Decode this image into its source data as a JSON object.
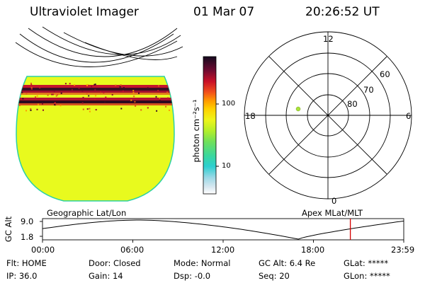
{
  "header": {
    "title": "Ultraviolet Imager",
    "date": "01 Mar 07",
    "time": "20:26:52 UT"
  },
  "image_panel": {
    "label": "Geographic Lat/Lon",
    "fill_color": "#e8fa1e"
  },
  "colorbar": {
    "unit_label": "photon cm⁻²s⁻¹",
    "ticks": [
      "100",
      "10"
    ]
  },
  "polar_plot": {
    "label": "Apex MLat/MLT",
    "mlt_labels": {
      "top": "12",
      "left": "18",
      "right": "6",
      "bottom": "0"
    },
    "lat_labels": [
      "60",
      "70",
      "80"
    ],
    "point_color": "#a8e23a"
  },
  "orbit_plot": {
    "ylabel": "GC Alt",
    "y_ticks": [
      "9.0",
      "1.8"
    ],
    "x_ticks": [
      "00:00",
      "06:00",
      "12:00",
      "18:00",
      "23:59"
    ],
    "current_time_marker_color": "#d40000",
    "current_time": 20.45
  },
  "status": [
    {
      "label": "Flt:",
      "value": "HOME"
    },
    {
      "label": "Door:",
      "value": "Closed"
    },
    {
      "label": "Mode:",
      "value": "Normal"
    },
    {
      "label": "GC Alt:",
      "value": "6.4 Re"
    },
    {
      "label": "GLat:",
      "value": "*****"
    },
    {
      "label": "IP:",
      "value": "36.0"
    },
    {
      "label": "Gain:",
      "value": "14"
    },
    {
      "label": "Dsp:",
      "value": "-0.0"
    },
    {
      "label": "Seq:",
      "value": "20"
    },
    {
      "label": "GLon:",
      "value": "*****"
    }
  ]
}
